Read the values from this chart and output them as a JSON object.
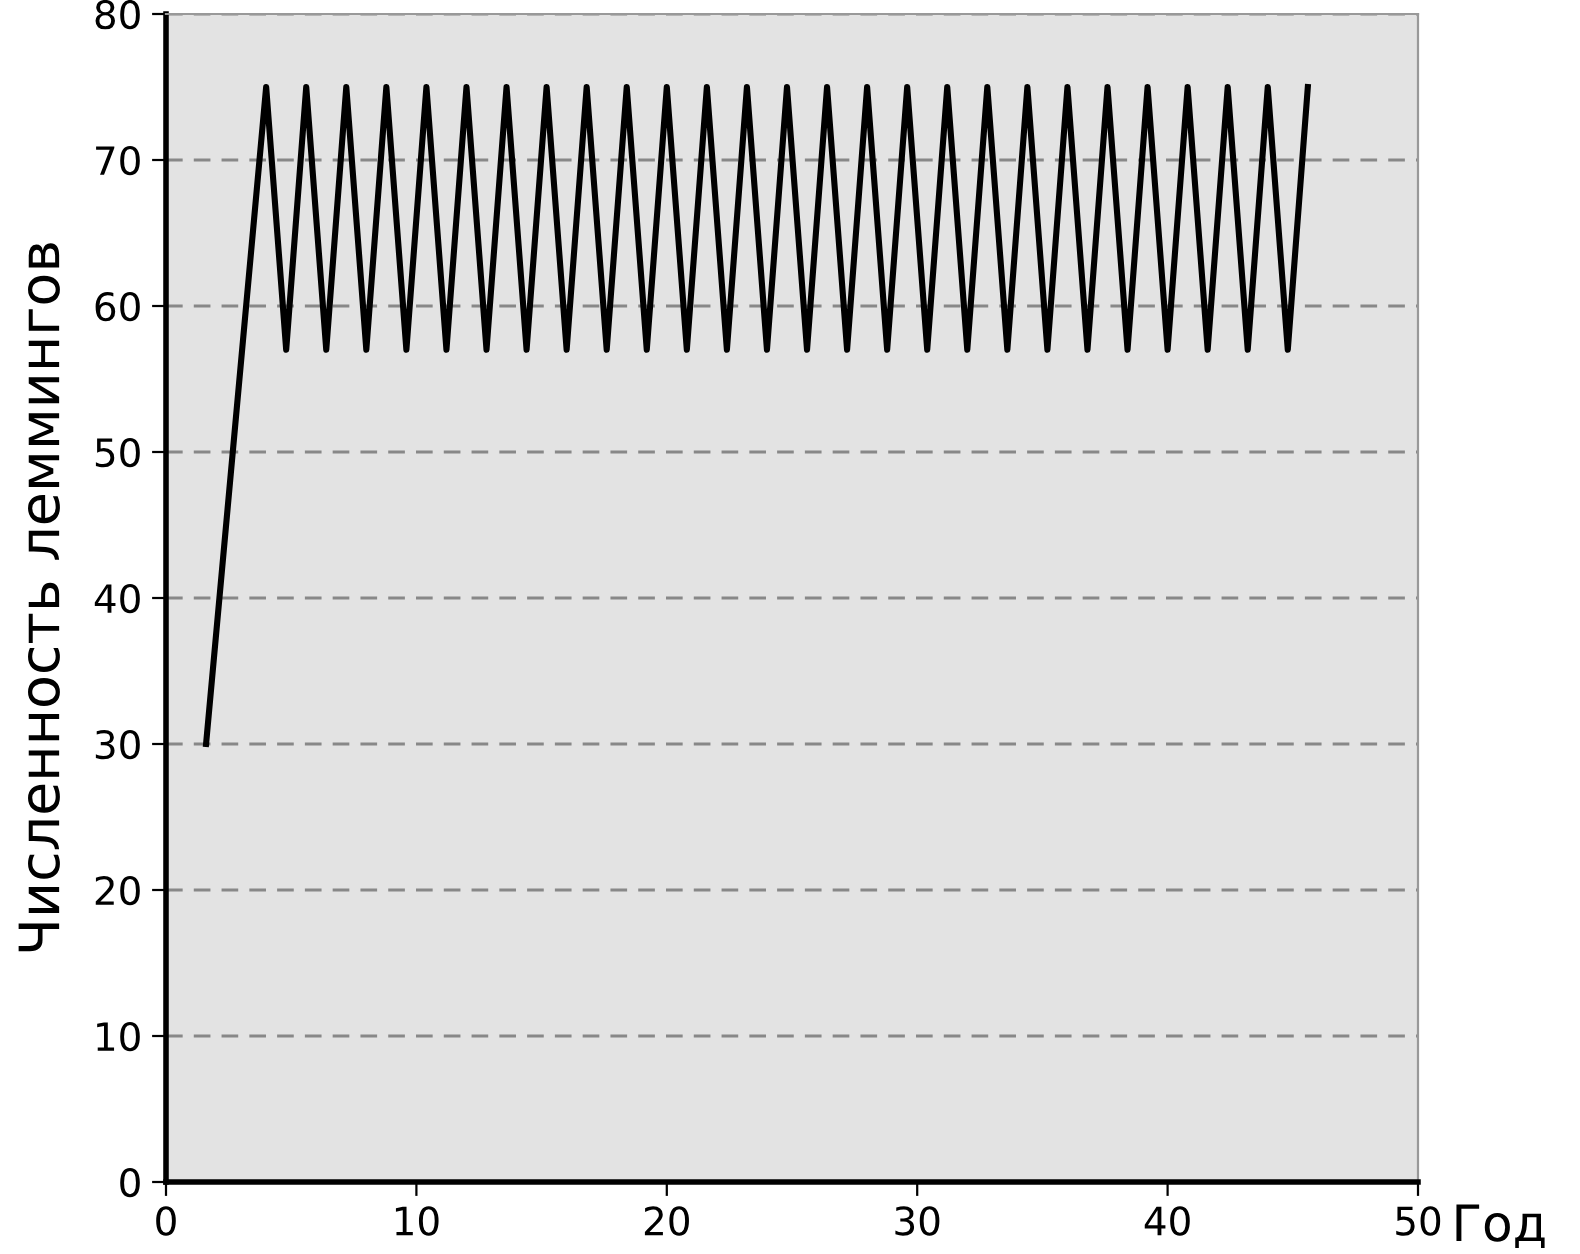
{
  "chart_data": {
    "type": "line",
    "xlabel": "Год",
    "ylabel": "Численность леммингов",
    "x": [
      1.6,
      4.0,
      4.8,
      5.6,
      6.4,
      7.2,
      8.0,
      8.8,
      9.6,
      10.4,
      11.2,
      12.0,
      12.8,
      13.6,
      14.4,
      15.2,
      16.0,
      16.8,
      17.6,
      18.4,
      19.2,
      20.0,
      20.8,
      21.6,
      22.4,
      23.2,
      24.0,
      24.8,
      25.6,
      26.4,
      27.2,
      28.0,
      28.8,
      29.6,
      30.4,
      31.2,
      32.0,
      32.8,
      33.6,
      34.4,
      35.2,
      36.0,
      36.8,
      37.6,
      38.4,
      39.2,
      40.0,
      40.8,
      41.6,
      42.4,
      43.2,
      44.0,
      44.8,
      45.6
    ],
    "series": [
      {
        "color": "#000000",
        "values": [
          30,
          75,
          57,
          75,
          57,
          75,
          57,
          75,
          57,
          75,
          57,
          75,
          57,
          75,
          57,
          75,
          57,
          75,
          57,
          75,
          57,
          75,
          57,
          75,
          57,
          75,
          57,
          75,
          57,
          75,
          57,
          75,
          57,
          75,
          57,
          75,
          57,
          75,
          57,
          75,
          57,
          75,
          57,
          75,
          57,
          75,
          57,
          75,
          57,
          75,
          57,
          75,
          57,
          75
        ]
      }
    ],
    "xlim": [
      0,
      50
    ],
    "xticks": [
      0,
      10,
      20,
      30,
      40,
      50
    ],
    "ylim": [
      0,
      80
    ],
    "yticks": [
      0,
      10,
      20,
      30,
      40,
      50,
      60,
      70,
      80
    ],
    "grid": "y",
    "marker": "none",
    "line_style": "solid",
    "legend": false
  }
}
